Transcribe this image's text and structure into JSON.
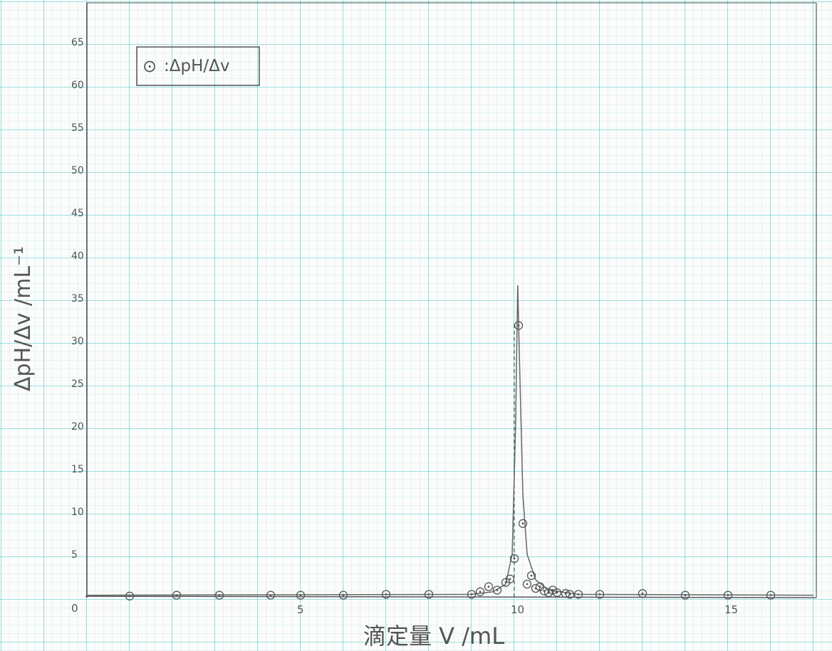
{
  "chart_data": {
    "type": "scatter",
    "title": "",
    "xlabel": "滴定量 V /mL",
    "ylabel": "ΔpH/Δv  /mL⁻¹",
    "xlim": [
      0,
      17
    ],
    "ylim": [
      0,
      70
    ],
    "xticks": [
      5,
      10,
      15
    ],
    "yticks": [
      5,
      10,
      15,
      20,
      25,
      30,
      35,
      40,
      45,
      50,
      55,
      60,
      65
    ],
    "origin_label": "0",
    "grid": true,
    "legend": {
      "position": "top-left",
      "symbol": "⊙",
      "text": ":ΔpH/Δv"
    },
    "series": [
      {
        "points": [
          [
            1.0,
            0.1
          ],
          [
            2.1,
            0.2
          ],
          [
            3.1,
            0.2
          ],
          [
            4.3,
            0.2
          ],
          [
            5.0,
            0.2
          ],
          [
            6.0,
            0.2
          ],
          [
            7.0,
            0.3
          ],
          [
            8.0,
            0.3
          ],
          [
            9.0,
            0.3
          ],
          [
            9.2,
            0.6
          ],
          [
            9.4,
            1.2
          ],
          [
            9.6,
            0.8
          ],
          [
            9.8,
            1.7
          ],
          [
            9.9,
            2.1
          ],
          [
            10.0,
            4.5
          ],
          [
            10.1,
            31.8
          ],
          [
            10.2,
            8.6
          ],
          [
            10.3,
            1.5
          ],
          [
            10.4,
            2.5
          ],
          [
            10.5,
            1.0
          ],
          [
            10.6,
            1.2
          ],
          [
            10.7,
            0.7
          ],
          [
            10.8,
            0.5
          ],
          [
            10.9,
            0.8
          ],
          [
            11.0,
            0.5
          ],
          [
            11.2,
            0.4
          ],
          [
            11.3,
            0.3
          ],
          [
            11.5,
            0.3
          ],
          [
            12.0,
            0.3
          ],
          [
            13.0,
            0.4
          ],
          [
            14.0,
            0.2
          ],
          [
            15.0,
            0.2
          ],
          [
            16.0,
            0.2
          ]
        ]
      }
    ],
    "fit_curve": [
      [
        0.0,
        0.2
      ],
      [
        9.0,
        0.3
      ],
      [
        9.5,
        0.6
      ],
      [
        9.8,
        1.5
      ],
      [
        9.95,
        5.0
      ],
      [
        10.03,
        20.0
      ],
      [
        10.08,
        36.5
      ],
      [
        10.13,
        26.0
      ],
      [
        10.2,
        12.0
      ],
      [
        10.3,
        5.0
      ],
      [
        10.5,
        2.0
      ],
      [
        10.8,
        0.8
      ],
      [
        11.5,
        0.3
      ],
      [
        17.0,
        0.2
      ]
    ],
    "vline_x": 10.0
  }
}
